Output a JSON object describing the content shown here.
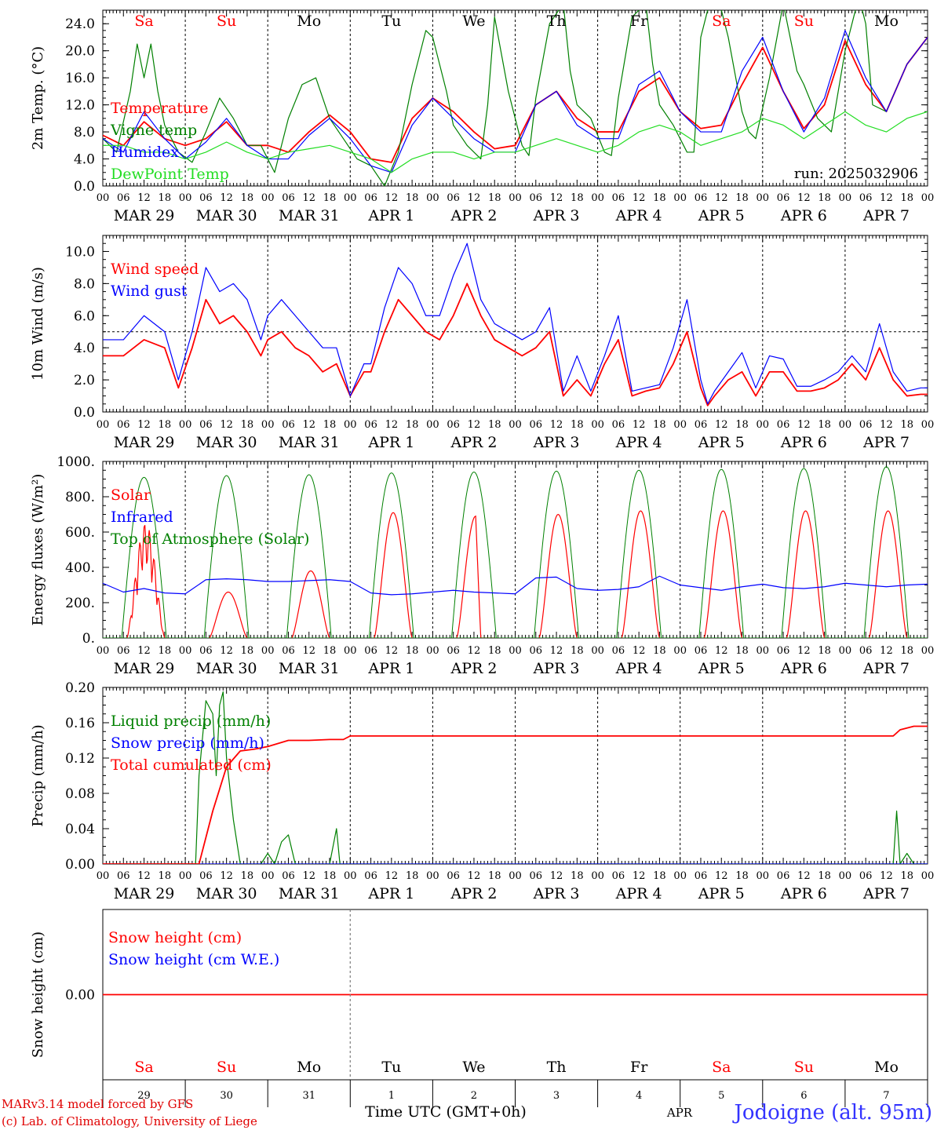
{
  "run_label": "run: 2025032906",
  "days": [
    {
      "abbr": "Sa",
      "weekend": true,
      "date": "MAR 29",
      "num": "29"
    },
    {
      "abbr": "Su",
      "weekend": true,
      "date": "MAR 30",
      "num": "30"
    },
    {
      "abbr": "Mo",
      "weekend": false,
      "date": "MAR 31",
      "num": "31"
    },
    {
      "abbr": "Tu",
      "weekend": false,
      "date": "APR  1",
      "num": "1"
    },
    {
      "abbr": "We",
      "weekend": false,
      "date": "APR  2",
      "num": "2"
    },
    {
      "abbr": "Th",
      "weekend": false,
      "date": "APR  3",
      "num": "3"
    },
    {
      "abbr": "Fr",
      "weekend": false,
      "date": "APR  4",
      "num": "4"
    },
    {
      "abbr": "Sa",
      "weekend": true,
      "date": "APR  5",
      "num": "5"
    },
    {
      "abbr": "Su",
      "weekend": true,
      "date": "APR  6",
      "num": "6"
    },
    {
      "abbr": "Mo",
      "weekend": false,
      "date": "APR  7",
      "num": "7"
    }
  ],
  "hour_ticks": [
    "00",
    "06",
    "12",
    "18"
  ],
  "colors": {
    "red": "#ff0000",
    "green": "#008000",
    "blue": "#0000ff",
    "lightgreen": "#22dd22",
    "grid": "#000000",
    "title": "#3333ff",
    "footer": "#e00000"
  },
  "footer": {
    "model": "MARv3.14 model forced by GFS",
    "lab": "(c) Lab. of Climatology, University of Liege",
    "xlabel": "Time UTC (GMT+0h)",
    "month": "APR",
    "station": "Jodoigne (alt. 95m)"
  },
  "chart_data": [
    {
      "id": "temp",
      "type": "line",
      "ylabel": "2m Temp. (°C)",
      "ylim": [
        0,
        26
      ],
      "yticks": [
        "0.0",
        "4.0",
        "8.0",
        "12.0",
        "16.0",
        "20.0",
        "24.0"
      ],
      "ytick_values": [
        0,
        4,
        8,
        12,
        16,
        20,
        24
      ],
      "legend": [
        {
          "name": "Temperature",
          "color": "red"
        },
        {
          "name": "Vigne temp",
          "color": "green"
        },
        {
          "name": "Humidex",
          "color": "blue"
        },
        {
          "name": "DewPoint Temp",
          "color": "lightgreen"
        }
      ],
      "series": [
        {
          "name": "Temperature",
          "color": "red",
          "x": [
            0,
            6,
            12,
            18,
            24,
            30,
            36,
            42,
            48,
            54,
            60,
            66,
            72,
            78,
            84,
            90,
            96,
            102,
            108,
            114,
            120,
            126,
            132,
            138,
            144,
            150,
            156,
            162,
            168,
            174,
            180,
            186,
            192,
            198,
            204,
            210,
            216,
            222,
            228,
            234,
            240
          ],
          "y": [
            7.5,
            6,
            9.5,
            7,
            6,
            7,
            9.5,
            6,
            6,
            5,
            8,
            10.5,
            8,
            4,
            3.5,
            10,
            13,
            11,
            8,
            5.5,
            6,
            12,
            14,
            10,
            8,
            8,
            14,
            16,
            11,
            8.5,
            9,
            15,
            20.5,
            14,
            8.5,
            12,
            21.5,
            15,
            11,
            18,
            22
          ]
        },
        {
          "name": "Vigne temp",
          "color": "green",
          "x": [
            0,
            4,
            8,
            10,
            12,
            14,
            16,
            18,
            22,
            26,
            30,
            34,
            38,
            42,
            46,
            50,
            54,
            58,
            62,
            66,
            70,
            74,
            78,
            82,
            86,
            90,
            94,
            96,
            100,
            102,
            106,
            108,
            110,
            112,
            114,
            118,
            122,
            124,
            126,
            130,
            134,
            136,
            138,
            142,
            146,
            148,
            150,
            154,
            158,
            160,
            162,
            166,
            170,
            172,
            174,
            178,
            182,
            186,
            188,
            190,
            194,
            198,
            202,
            204,
            208,
            212,
            216,
            220,
            222,
            224,
            228
          ],
          "y": [
            7,
            5,
            14,
            21,
            16,
            21,
            14,
            9,
            5,
            3.5,
            8,
            13,
            10,
            6,
            6,
            2,
            10,
            15,
            16,
            10,
            7,
            4,
            3,
            0,
            5,
            15,
            23,
            22,
            14,
            9,
            6,
            5,
            4,
            12,
            25,
            14,
            6,
            4.5,
            13,
            24,
            27,
            17,
            12,
            10,
            5,
            4.5,
            13,
            25,
            27,
            18,
            12,
            9,
            5,
            5,
            22,
            30,
            22,
            11,
            8,
            7,
            16,
            27,
            17,
            15,
            10,
            8,
            20,
            28,
            24,
            12,
            11
          ]
        },
        {
          "name": "Humidex",
          "color": "blue",
          "x": [
            0,
            6,
            12,
            18,
            24,
            30,
            36,
            42,
            48,
            54,
            60,
            66,
            72,
            78,
            84,
            90,
            96,
            102,
            108,
            114,
            120,
            126,
            132,
            138,
            144,
            150,
            156,
            162,
            168,
            174,
            180,
            186,
            192,
            198,
            204,
            210,
            216,
            222,
            228,
            234,
            240
          ],
          "y": [
            7,
            5,
            11,
            7,
            4,
            6.5,
            10,
            6,
            4,
            4,
            7.5,
            10,
            7,
            3,
            2,
            9,
            13,
            10,
            7,
            5,
            5,
            12,
            14,
            9,
            7,
            7,
            15,
            17,
            11,
            8,
            8,
            17,
            22,
            14,
            8,
            13,
            23,
            16,
            11,
            18,
            22
          ]
        },
        {
          "name": "DewPoint Temp",
          "color": "lightgreen",
          "x": [
            0,
            6,
            12,
            18,
            24,
            30,
            36,
            42,
            48,
            54,
            60,
            66,
            72,
            78,
            84,
            90,
            96,
            102,
            108,
            114,
            120,
            126,
            132,
            138,
            144,
            150,
            156,
            162,
            168,
            174,
            180,
            186,
            192,
            198,
            204,
            210,
            216,
            222,
            228,
            234,
            240
          ],
          "y": [
            6,
            6,
            5,
            5,
            4,
            5,
            6.5,
            5,
            4,
            5,
            5.5,
            6,
            5,
            4,
            2,
            4,
            5,
            5,
            4,
            5,
            5,
            6,
            7,
            6,
            5,
            6,
            8,
            9,
            8,
            6,
            7,
            8,
            10,
            9,
            7,
            9,
            11,
            9,
            8,
            10,
            11
          ]
        }
      ]
    },
    {
      "id": "wind",
      "type": "line",
      "ylabel": "10m Wind (m/s)",
      "ylim": [
        0,
        11
      ],
      "yticks": [
        "0.0",
        "2.0",
        "4.0",
        "6.0",
        "8.0",
        "10.0"
      ],
      "ytick_values": [
        0,
        2,
        4,
        6,
        8,
        10
      ],
      "legend": [
        {
          "name": "Wind speed",
          "color": "red"
        },
        {
          "name": "Wind gust",
          "color": "blue"
        }
      ],
      "reference_line": 5,
      "series": [
        {
          "name": "Wind speed",
          "color": "red",
          "x": [
            0,
            6,
            12,
            18,
            22,
            26,
            30,
            34,
            38,
            42,
            46,
            48,
            52,
            56,
            60,
            64,
            68,
            72,
            76,
            78,
            82,
            86,
            90,
            94,
            98,
            102,
            106,
            110,
            114,
            118,
            122,
            126,
            130,
            134,
            138,
            142,
            146,
            150,
            154,
            158,
            162,
            166,
            170,
            174,
            176,
            178,
            182,
            186,
            190,
            194,
            198,
            202,
            206,
            210,
            214,
            218,
            222,
            226,
            230,
            234,
            238,
            240
          ],
          "y": [
            3.5,
            3.5,
            4.5,
            4,
            1.5,
            4,
            7,
            5.5,
            6,
            5,
            3.5,
            4.5,
            5,
            4,
            3.5,
            2.5,
            3,
            1,
            2.5,
            2.5,
            5,
            7,
            6,
            5,
            4.5,
            6,
            8,
            6,
            4.5,
            4,
            3.5,
            4,
            5,
            1,
            2,
            1,
            3,
            4.5,
            1,
            1.3,
            1.5,
            3,
            5,
            1.5,
            0.4,
            1,
            2,
            2.5,
            1,
            2.5,
            2.5,
            1.3,
            1.3,
            1.5,
            2,
            3,
            2,
            4,
            2,
            1,
            1.1,
            1.1
          ]
        },
        {
          "name": "Wind gust",
          "color": "blue",
          "x": [
            0,
            6,
            12,
            18,
            22,
            26,
            30,
            34,
            38,
            42,
            46,
            48,
            52,
            56,
            60,
            64,
            68,
            72,
            76,
            78,
            82,
            86,
            90,
            94,
            98,
            102,
            106,
            110,
            114,
            118,
            122,
            126,
            130,
            134,
            138,
            142,
            146,
            150,
            154,
            158,
            162,
            166,
            170,
            174,
            176,
            178,
            182,
            186,
            190,
            194,
            198,
            202,
            206,
            210,
            214,
            218,
            222,
            226,
            230,
            234,
            238,
            240
          ],
          "y": [
            4.5,
            4.5,
            6,
            5,
            2,
            5,
            9,
            7.5,
            8,
            7,
            4.5,
            6,
            7,
            6,
            5,
            4,
            4,
            1,
            3,
            3,
            6.5,
            9,
            8,
            6,
            6,
            8.5,
            10.5,
            7,
            5.5,
            5,
            4.5,
            5,
            6.5,
            1.3,
            3.5,
            1.3,
            3.5,
            6,
            1.3,
            1.5,
            1.7,
            4,
            7,
            2,
            0.5,
            1.3,
            2.5,
            3.7,
            1.5,
            3.5,
            3.3,
            1.6,
            1.6,
            2,
            2.5,
            3.5,
            2.5,
            5.5,
            2.5,
            1.3,
            1.5,
            1.5
          ]
        }
      ]
    },
    {
      "id": "energy",
      "type": "line",
      "ylabel": "Energy fluxes (W/m²)",
      "ylim": [
        0,
        1000
      ],
      "yticks": [
        "0.",
        "200.",
        "400.",
        "600.",
        "800.",
        "1000."
      ],
      "ytick_values": [
        0,
        200,
        400,
        600,
        800,
        1000
      ],
      "legend": [
        {
          "name": "Solar",
          "color": "red"
        },
        {
          "name": "Infrared",
          "color": "blue"
        },
        {
          "name": "Top of Atmosphere (Solar)",
          "color": "green"
        }
      ],
      "toa_peaks": [
        910,
        920,
        925,
        935,
        940,
        945,
        950,
        955,
        960,
        970
      ],
      "solar_peaks": [
        650,
        260,
        380,
        710,
        690,
        700,
        720,
        720,
        720,
        720
      ],
      "series": [
        {
          "name": "Infrared",
          "color": "blue",
          "x": [
            0,
            6,
            12,
            18,
            24,
            30,
            36,
            42,
            48,
            54,
            60,
            66,
            72,
            78,
            84,
            90,
            96,
            102,
            108,
            114,
            120,
            126,
            132,
            138,
            144,
            150,
            156,
            162,
            168,
            174,
            180,
            186,
            192,
            198,
            204,
            210,
            216,
            222,
            228,
            234,
            240
          ],
          "y": [
            310,
            260,
            280,
            255,
            250,
            330,
            335,
            330,
            320,
            320,
            325,
            330,
            320,
            255,
            245,
            250,
            260,
            270,
            260,
            255,
            250,
            340,
            345,
            280,
            270,
            275,
            290,
            350,
            300,
            285,
            270,
            290,
            305,
            285,
            280,
            290,
            310,
            300,
            290,
            300,
            305
          ]
        }
      ]
    },
    {
      "id": "precip",
      "type": "line",
      "ylabel": "Precip (mm/h)",
      "ylim": [
        0,
        0.2
      ],
      "yticks": [
        "0.00",
        "0.04",
        "0.08",
        "0.12",
        "0.16",
        "0.20"
      ],
      "ytick_values": [
        0,
        0.04,
        0.08,
        0.12,
        0.16,
        0.2
      ],
      "legend": [
        {
          "name": "Liquid precip (mm/h)",
          "color": "green"
        },
        {
          "name": "Snow precip (mm/h)",
          "color": "blue"
        },
        {
          "name": "Total cumulated (cm)",
          "color": "red"
        }
      ],
      "series": [
        {
          "name": "Liquid precip (mm/h)",
          "color": "green",
          "x": [
            0,
            27,
            28,
            30,
            32,
            33,
            34,
            35,
            36,
            38,
            40,
            44,
            46,
            48,
            50,
            52,
            54,
            56,
            58,
            62,
            66,
            68,
            69,
            70,
            72,
            220,
            230,
            231,
            232,
            234,
            236,
            240
          ],
          "y": [
            0,
            0,
            0.1,
            0.185,
            0.17,
            0.1,
            0.18,
            0.195,
            0.12,
            0.05,
            0,
            0,
            0,
            0.012,
            0,
            0.025,
            0.033,
            0,
            0,
            0,
            0,
            0.04,
            0,
            0,
            0,
            0,
            0,
            0.06,
            0,
            0.012,
            0,
            0
          ]
        },
        {
          "name": "Snow precip (mm/h)",
          "color": "blue",
          "x": [
            0,
            240
          ],
          "y": [
            0,
            0
          ]
        },
        {
          "name": "Total cumulated (cm)",
          "color": "red",
          "x": [
            0,
            28,
            32,
            36,
            40,
            44,
            48,
            54,
            60,
            66,
            70,
            72,
            74,
            230,
            232,
            236,
            240
          ],
          "y": [
            0,
            0,
            0.06,
            0.11,
            0.128,
            0.13,
            0.133,
            0.14,
            0.14,
            0.141,
            0.141,
            0.145,
            0.145,
            0.145,
            0.152,
            0.156,
            0.156
          ]
        }
      ]
    },
    {
      "id": "snow",
      "type": "line",
      "ylabel": "Snow height (cm)",
      "ylim": [
        -1,
        1
      ],
      "yticks": [
        "0.00"
      ],
      "ytick_values": [
        0
      ],
      "legend": [
        {
          "name": "Snow height (cm)",
          "color": "red"
        },
        {
          "name": "Snow height (cm W.E.)",
          "color": "blue"
        }
      ],
      "series": [
        {
          "name": "Snow height (cm)",
          "color": "red",
          "x": [
            0,
            240
          ],
          "y": [
            0,
            0
          ]
        }
      ]
    }
  ]
}
